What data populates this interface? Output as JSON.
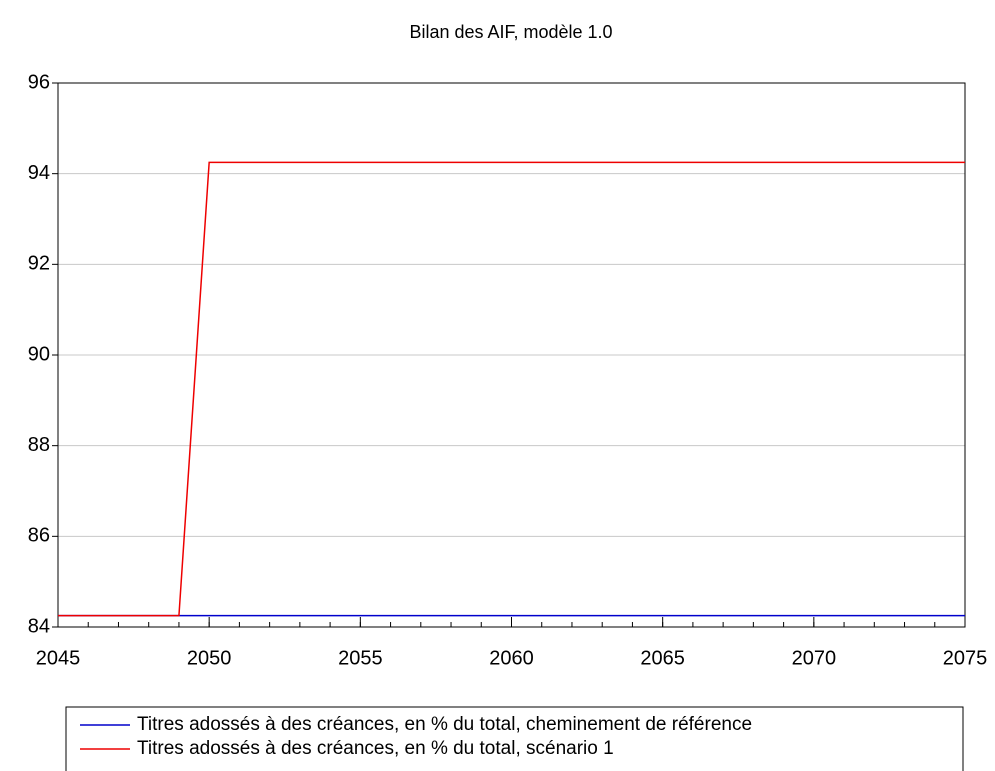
{
  "chart_data": {
    "type": "line",
    "title": "Bilan des AIF, modèle 1.0",
    "x": [
      2045,
      2046,
      2047,
      2048,
      2049,
      2050,
      2051,
      2052,
      2053,
      2054,
      2055,
      2056,
      2057,
      2058,
      2059,
      2060,
      2061,
      2062,
      2063,
      2064,
      2065,
      2066,
      2067,
      2068,
      2069,
      2070,
      2071,
      2072,
      2073,
      2074,
      2075
    ],
    "series": [
      {
        "name": "Titres adossés à des créances, en % du total, cheminement de référence",
        "color": "#0000cc",
        "values": [
          84.25,
          84.25,
          84.25,
          84.25,
          84.25,
          84.25,
          84.25,
          84.25,
          84.25,
          84.25,
          84.25,
          84.25,
          84.25,
          84.25,
          84.25,
          84.25,
          84.25,
          84.25,
          84.25,
          84.25,
          84.25,
          84.25,
          84.25,
          84.25,
          84.25,
          84.25,
          84.25,
          84.25,
          84.25,
          84.25,
          84.25
        ]
      },
      {
        "name": "Titres adossés à des créances, en % du total, scénario 1",
        "color": "#ee0000",
        "values": [
          84.25,
          84.25,
          84.25,
          84.25,
          84.25,
          94.25,
          94.25,
          94.25,
          94.25,
          94.25,
          94.25,
          94.25,
          94.25,
          94.25,
          94.25,
          94.25,
          94.25,
          94.25,
          94.25,
          94.25,
          94.25,
          94.25,
          94.25,
          94.25,
          94.25,
          94.25,
          94.25,
          94.25,
          94.25,
          94.25,
          94.25
        ]
      }
    ],
    "xlim": [
      2045,
      2075
    ],
    "xticks": [
      2045,
      2050,
      2055,
      2060,
      2065,
      2070,
      2075
    ],
    "ylim": [
      84,
      96
    ],
    "yticks": [
      84,
      86,
      88,
      90,
      92,
      94,
      96
    ],
    "grid": true,
    "legend": "bottom"
  }
}
